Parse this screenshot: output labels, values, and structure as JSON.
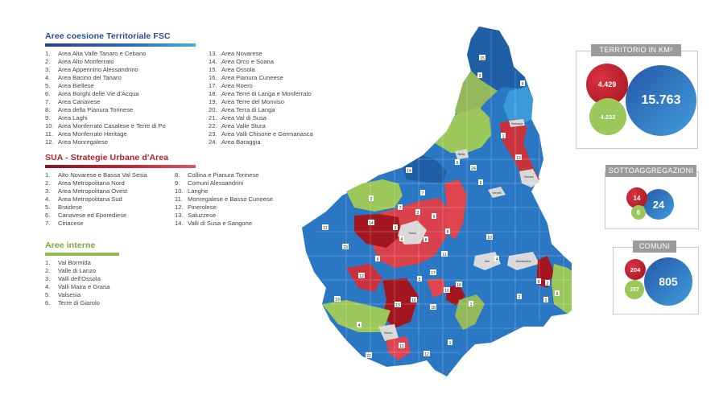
{
  "fsc": {
    "title": "Aree coesione Territoriale FSC",
    "color": "#2a4f8f",
    "items": [
      {
        "n": "1.",
        "label": "Area Alta Valle Tanaro e Cebano"
      },
      {
        "n": "2.",
        "label": "Area Alto Monferrato"
      },
      {
        "n": "3.",
        "label": "Area Appennino Alessandrino"
      },
      {
        "n": "4.",
        "label": "Area Bacino del Tanaro"
      },
      {
        "n": "5.",
        "label": "Area Biellese"
      },
      {
        "n": "6.",
        "label": "Area Borghi delle Vie d'Acqua"
      },
      {
        "n": "7.",
        "label": "Area Canavese"
      },
      {
        "n": "8.",
        "label": "Area della Pianura Torinese"
      },
      {
        "n": "9.",
        "label": "Area Laghi"
      },
      {
        "n": "10.",
        "label": "Area Monferrato Casalese e Terre di Po"
      },
      {
        "n": "11.",
        "label": "Area Monferrato Heritage"
      },
      {
        "n": "12.",
        "label": "Area Monregalese"
      },
      {
        "n": "13.",
        "label": "Area Novarese"
      },
      {
        "n": "14.",
        "label": "Area Orco e Soana"
      },
      {
        "n": "15.",
        "label": "Area Ossola"
      },
      {
        "n": "16.",
        "label": "Area Pianura Cuneese"
      },
      {
        "n": "17.",
        "label": "Area Roero"
      },
      {
        "n": "18.",
        "label": "Area Terre di Langa e Monferrato"
      },
      {
        "n": "19.",
        "label": "Area Terre del Monviso"
      },
      {
        "n": "20.",
        "label": "Area Terra di Langa"
      },
      {
        "n": "21.",
        "label": "Area Val di Susa"
      },
      {
        "n": "22.",
        "label": "Area Valle Stura"
      },
      {
        "n": "23.",
        "label": "Area Valli Chisone e Germanasca"
      },
      {
        "n": "24.",
        "label": "Area Baraggia"
      }
    ]
  },
  "sua": {
    "title": "SUA - Strategie Urbane d'Area",
    "color": "#b3202d",
    "items": [
      {
        "n": "1.",
        "label": "Alto Novarese e Bassa Val Sesia"
      },
      {
        "n": "2.",
        "label": "Area Metropolitana Nord"
      },
      {
        "n": "3.",
        "label": "Area Metropolitana Ovest"
      },
      {
        "n": "4.",
        "label": "Area Metropolitana Sud"
      },
      {
        "n": "5.",
        "label": "Braidese"
      },
      {
        "n": "6.",
        "label": "Canavese ed Eporediese"
      },
      {
        "n": "7.",
        "label": "Ciriacese"
      },
      {
        "n": "8.",
        "label": "Collina e Pianura Torinese"
      },
      {
        "n": "9.",
        "label": "Comuni Alessandrini"
      },
      {
        "n": "10.",
        "label": "Langhe"
      },
      {
        "n": "11.",
        "label": "Monregalese e Basso Cuneese"
      },
      {
        "n": "12.",
        "label": "Pinerolese"
      },
      {
        "n": "13.",
        "label": "Saluzzese"
      },
      {
        "n": "14.",
        "label": "Valli di Susa e Sangone"
      }
    ]
  },
  "aree_interne": {
    "title": "Aree interne",
    "color": "#7aa83a",
    "items": [
      {
        "n": "1.",
        "label": "Val Bormida"
      },
      {
        "n": "2.",
        "label": "Valle di Lanzo"
      },
      {
        "n": "3.",
        "label": "Valli dell'Ossola"
      },
      {
        "n": "4.",
        "label": "Valli Maira e Grana"
      },
      {
        "n": "5.",
        "label": "Valsesia"
      },
      {
        "n": "6.",
        "label": "Terre di Giarolo"
      }
    ]
  },
  "stats": {
    "territorio": {
      "label": "TERRITORIO IN KM²",
      "red": "4.429",
      "green": "4.232",
      "blue": "15.763"
    },
    "sottoaggregazioni": {
      "label": "SOTTOAGGREGAZIONI",
      "red": "14",
      "green": "6",
      "blue": "24"
    },
    "comuni": {
      "label": "COMUNI",
      "red": "204",
      "green": "157",
      "blue": "805"
    }
  },
  "map": {
    "cities": [
      "Torino",
      "Novara",
      "Vercelli",
      "Biella",
      "Asti",
      "Alessandria",
      "Cuneo",
      "Verbania"
    ],
    "colors": {
      "fsc_dark": "#1f5fa6",
      "fsc_light": "#3a9ad9",
      "sua_dark": "#a3161f",
      "sua_light": "#e0454f",
      "aree_interne": "#9cc75a",
      "city": "#d9d9d9"
    }
  }
}
